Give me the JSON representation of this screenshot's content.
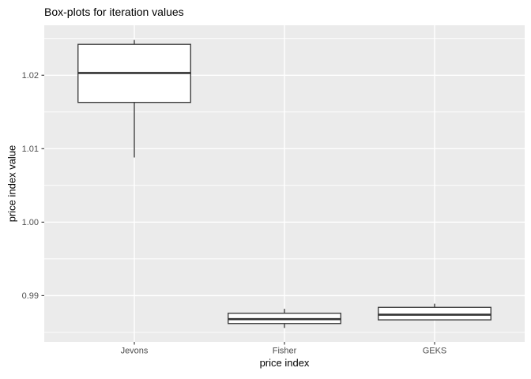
{
  "colors": {
    "panel_bg": "#EBEBEB",
    "grid_major": "#FFFFFF",
    "grid_minor": "#FFFFFF",
    "box_stroke": "#333333",
    "box_fill": "#FFFFFF",
    "tick_label": "#4D4D4D",
    "tick_mark": "#333333",
    "axis_title": "#000000",
    "title": "#000000"
  },
  "chart_data": {
    "type": "boxplot",
    "title": "Box-plots for iteration values",
    "xlabel": "price index",
    "ylabel": "price index value",
    "categories": [
      "Jevons",
      "Fisher",
      "GEKS"
    ],
    "series": [
      {
        "name": "Jevons",
        "whisker_low": 1.0088,
        "q1": 1.0163,
        "median": 1.0203,
        "q3": 1.0242,
        "whisker_high": 1.0248
      },
      {
        "name": "Fisher",
        "whisker_low": 0.9856,
        "q1": 0.9862,
        "median": 0.9868,
        "q3": 0.9876,
        "whisker_high": 0.9882
      },
      {
        "name": "GEKS",
        "whisker_low": 0.9867,
        "q1": 0.9867,
        "median": 0.9874,
        "q3": 0.9884,
        "whisker_high": 0.9889
      }
    ],
    "y_ticks": [
      {
        "value": 0.99,
        "label": "0.99"
      },
      {
        "value": 1.0,
        "label": "1.00"
      },
      {
        "value": 1.01,
        "label": "1.01"
      },
      {
        "value": 1.02,
        "label": "1.02"
      }
    ],
    "y_minor": [
      0.985,
      0.995,
      1.005,
      1.015,
      1.025
    ],
    "ylim": [
      0.9837,
      1.0268
    ],
    "grid": true,
    "legend": "none",
    "layout": {
      "category_pos": [
        0.1875,
        0.5,
        0.8125
      ],
      "box_width_frac": 0.234375
    }
  }
}
